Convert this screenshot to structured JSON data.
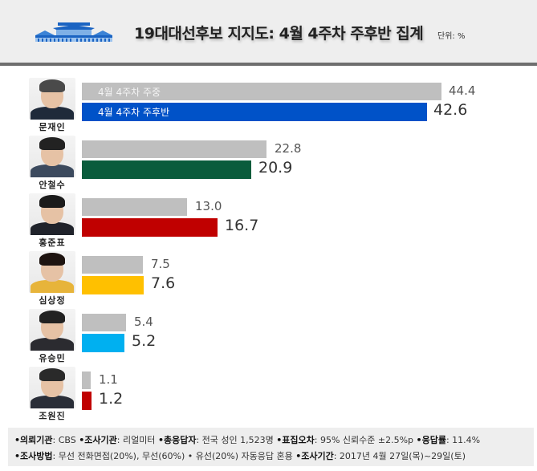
{
  "header": {
    "title": "19대대선후보 지지도: 4월 4주차 주후반 집계",
    "unit": "단위: %"
  },
  "legend": {
    "prev": "4월 4주차 주중",
    "curr": "4월 4주차 주후반"
  },
  "candidates": [
    {
      "name": "문재인",
      "prev": "44.4",
      "curr": "42.6",
      "color": "#0052c8"
    },
    {
      "name": "안철수",
      "prev": "22.8",
      "curr": "20.9",
      "color": "#0a5c3c"
    },
    {
      "name": "홍준표",
      "prev": "13.0",
      "curr": "16.7",
      "color": "#c00000"
    },
    {
      "name": "심상정",
      "prev": "7.5",
      "curr": "7.6",
      "color": "#ffc000"
    },
    {
      "name": "유승민",
      "prev": "5.4",
      "curr": "5.2",
      "color": "#00b0f0"
    },
    {
      "name": "조원진",
      "prev": "1.1",
      "curr": "1.2",
      "color": "#c00000"
    }
  ],
  "footer": {
    "line1": [
      {
        "key": "•의뢰기관",
        "value": ": CBS "
      },
      {
        "key": "•조사기관",
        "value": ": 리얼미터 "
      },
      {
        "key": "•총응답자",
        "value": ": 전국 성인 1,523명 "
      },
      {
        "key": "•표집오차",
        "value": ": 95% 신뢰수준 ±2.5%p "
      },
      {
        "key": "•응답률",
        "value": ": 11.4%"
      }
    ],
    "line2": [
      {
        "key": "•조사방법",
        "value": ": 무선 전화면접(20%), 무선(60%) • 유선(20%) 자동응답 혼용  "
      },
      {
        "key": "•조사기간",
        "value": ": 2017년 4월 27일(목)~29일(토)"
      }
    ]
  },
  "chart_data": {
    "type": "bar",
    "orientation": "horizontal",
    "title": "19대대선후보 지지도: 4월 4주차 주후반 집계",
    "unit": "%",
    "categories": [
      "문재인",
      "안철수",
      "홍준표",
      "심상정",
      "유승민",
      "조원진"
    ],
    "series": [
      {
        "name": "4월 4주차 주중",
        "values": [
          44.4,
          22.8,
          13.0,
          7.5,
          5.4,
          1.1
        ],
        "color": "#bfbfbf"
      },
      {
        "name": "4월 4주차 주후반",
        "values": [
          42.6,
          20.9,
          16.7,
          7.6,
          5.2,
          1.2
        ],
        "colors": [
          "#0052c8",
          "#0a5c3c",
          "#c00000",
          "#ffc000",
          "#00b0f0",
          "#c00000"
        ]
      }
    ],
    "legend_position": "inside first bars",
    "grid": false,
    "xlim": [
      0,
      50
    ]
  }
}
